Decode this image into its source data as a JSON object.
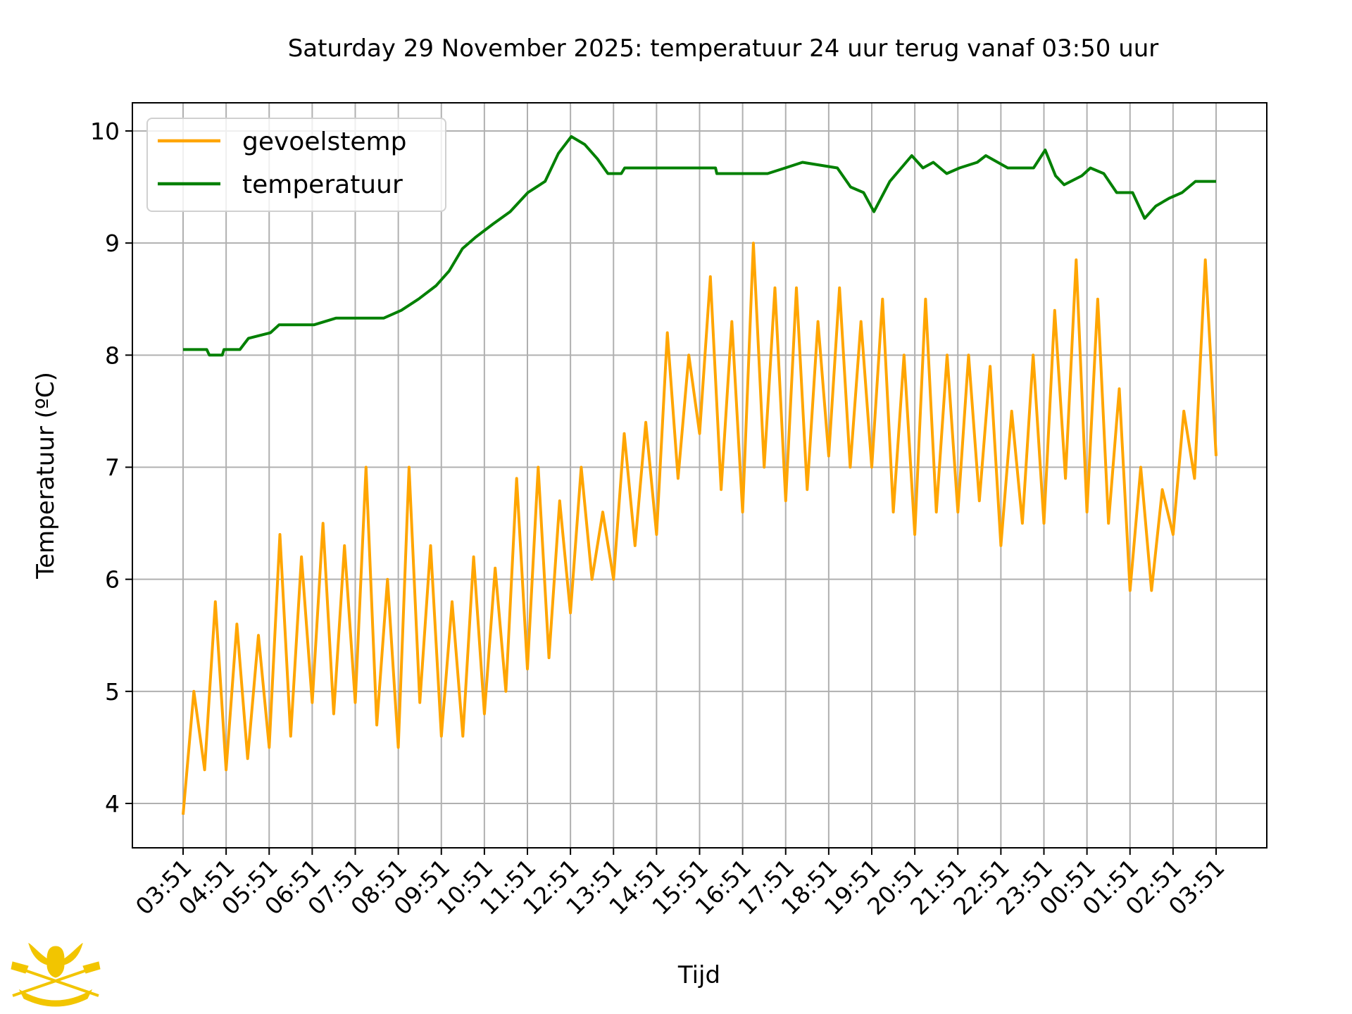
{
  "chart_data": {
    "type": "line",
    "title": "Saturday 29 November 2025: temperatuur 24 uur terug vanaf 03:50 uur",
    "xlabel": "Tijd",
    "ylabel": "Temperatuur (ºC)",
    "ylim": [
      3.75,
      10.25
    ],
    "xlim_hours": [
      -1.2,
      25.2
    ],
    "yticks": [
      4,
      5,
      6,
      7,
      8,
      9,
      10
    ],
    "xticks": [
      "03:51",
      "04:51",
      "05:51",
      "06:51",
      "07:51",
      "08:51",
      "09:51",
      "10:51",
      "11:51",
      "12:51",
      "13:51",
      "14:51",
      "15:51",
      "16:51",
      "17:51",
      "18:51",
      "19:51",
      "20:51",
      "21:51",
      "22:51",
      "23:51",
      "00:51",
      "01:51",
      "02:51",
      "03:51"
    ],
    "grid": true,
    "legend_position": "top-left",
    "series": [
      {
        "name": "gevoelstemp",
        "color": "#FFA500",
        "x_step_hours": 0.25,
        "values": [
          3.9,
          5.0,
          4.3,
          5.8,
          4.3,
          5.6,
          4.4,
          5.5,
          4.5,
          6.4,
          4.6,
          6.2,
          4.9,
          6.5,
          4.8,
          6.3,
          4.9,
          7.0,
          4.7,
          6.0,
          4.5,
          7.0,
          4.9,
          6.3,
          4.6,
          5.8,
          4.6,
          6.2,
          4.8,
          6.1,
          5.0,
          6.9,
          5.2,
          7.0,
          5.3,
          6.7,
          5.7,
          7.0,
          6.0,
          6.6,
          6.0,
          7.3,
          6.3,
          7.4,
          6.4,
          8.2,
          6.9,
          8.0,
          7.3,
          8.7,
          6.8,
          8.3,
          6.6,
          9.0,
          7.0,
          8.6,
          6.7,
          8.6,
          6.8,
          8.3,
          7.1,
          8.6,
          7.0,
          8.3,
          7.0,
          8.5,
          6.6,
          8.0,
          6.4,
          8.5,
          6.6,
          8.0,
          6.6,
          8.0,
          6.7,
          7.9,
          6.3,
          7.5,
          6.5,
          8.0,
          6.5,
          8.4,
          6.9,
          8.85,
          6.6,
          8.5,
          6.5,
          7.7,
          5.9,
          7.0,
          5.9,
          6.8,
          6.4,
          7.5,
          6.9,
          8.85,
          7.1
        ]
      },
      {
        "name": "temperatuur",
        "color": "#008000",
        "points_hours": [
          [
            0,
            8.05
          ],
          [
            0.55,
            8.05
          ],
          [
            0.61,
            8.0
          ],
          [
            0.91,
            8.0
          ],
          [
            0.95,
            8.05
          ],
          [
            1.32,
            8.05
          ],
          [
            1.52,
            8.15
          ],
          [
            2.03,
            8.2
          ],
          [
            2.23,
            8.27
          ],
          [
            3.04,
            8.27
          ],
          [
            3.55,
            8.33
          ],
          [
            4.66,
            8.33
          ],
          [
            5.07,
            8.4
          ],
          [
            5.47,
            8.5
          ],
          [
            5.88,
            8.62
          ],
          [
            6.18,
            8.75
          ],
          [
            6.49,
            8.95
          ],
          [
            6.79,
            9.05
          ],
          [
            7.2,
            9.17
          ],
          [
            7.6,
            9.28
          ],
          [
            8.01,
            9.45
          ],
          [
            8.41,
            9.55
          ],
          [
            8.72,
            9.8
          ],
          [
            9.02,
            9.95
          ],
          [
            9.33,
            9.88
          ],
          [
            9.63,
            9.75
          ],
          [
            9.87,
            9.62
          ],
          [
            10.18,
            9.62
          ],
          [
            10.26,
            9.67
          ],
          [
            12.37,
            9.67
          ],
          [
            12.4,
            9.62
          ],
          [
            13.58,
            9.62
          ],
          [
            13.99,
            9.67
          ],
          [
            14.39,
            9.72
          ],
          [
            15.2,
            9.67
          ],
          [
            15.51,
            9.5
          ],
          [
            15.81,
            9.45
          ],
          [
            16.05,
            9.28
          ],
          [
            16.42,
            9.55
          ],
          [
            16.93,
            9.78
          ],
          [
            17.19,
            9.67
          ],
          [
            17.43,
            9.72
          ],
          [
            17.74,
            9.62
          ],
          [
            18.04,
            9.67
          ],
          [
            18.45,
            9.72
          ],
          [
            18.65,
            9.78
          ],
          [
            19.16,
            9.67
          ],
          [
            19.76,
            9.67
          ],
          [
            20.03,
            9.83
          ],
          [
            20.27,
            9.6
          ],
          [
            20.47,
            9.52
          ],
          [
            20.88,
            9.6
          ],
          [
            21.08,
            9.67
          ],
          [
            21.39,
            9.62
          ],
          [
            21.69,
            9.45
          ],
          [
            22.06,
            9.45
          ],
          [
            22.34,
            9.22
          ],
          [
            22.6,
            9.33
          ],
          [
            22.91,
            9.4
          ],
          [
            23.21,
            9.45
          ],
          [
            23.52,
            9.55
          ],
          [
            24,
            9.55
          ]
        ]
      }
    ]
  },
  "colors": {
    "grid": "#b0b0b0",
    "logo": "#F2C500"
  }
}
